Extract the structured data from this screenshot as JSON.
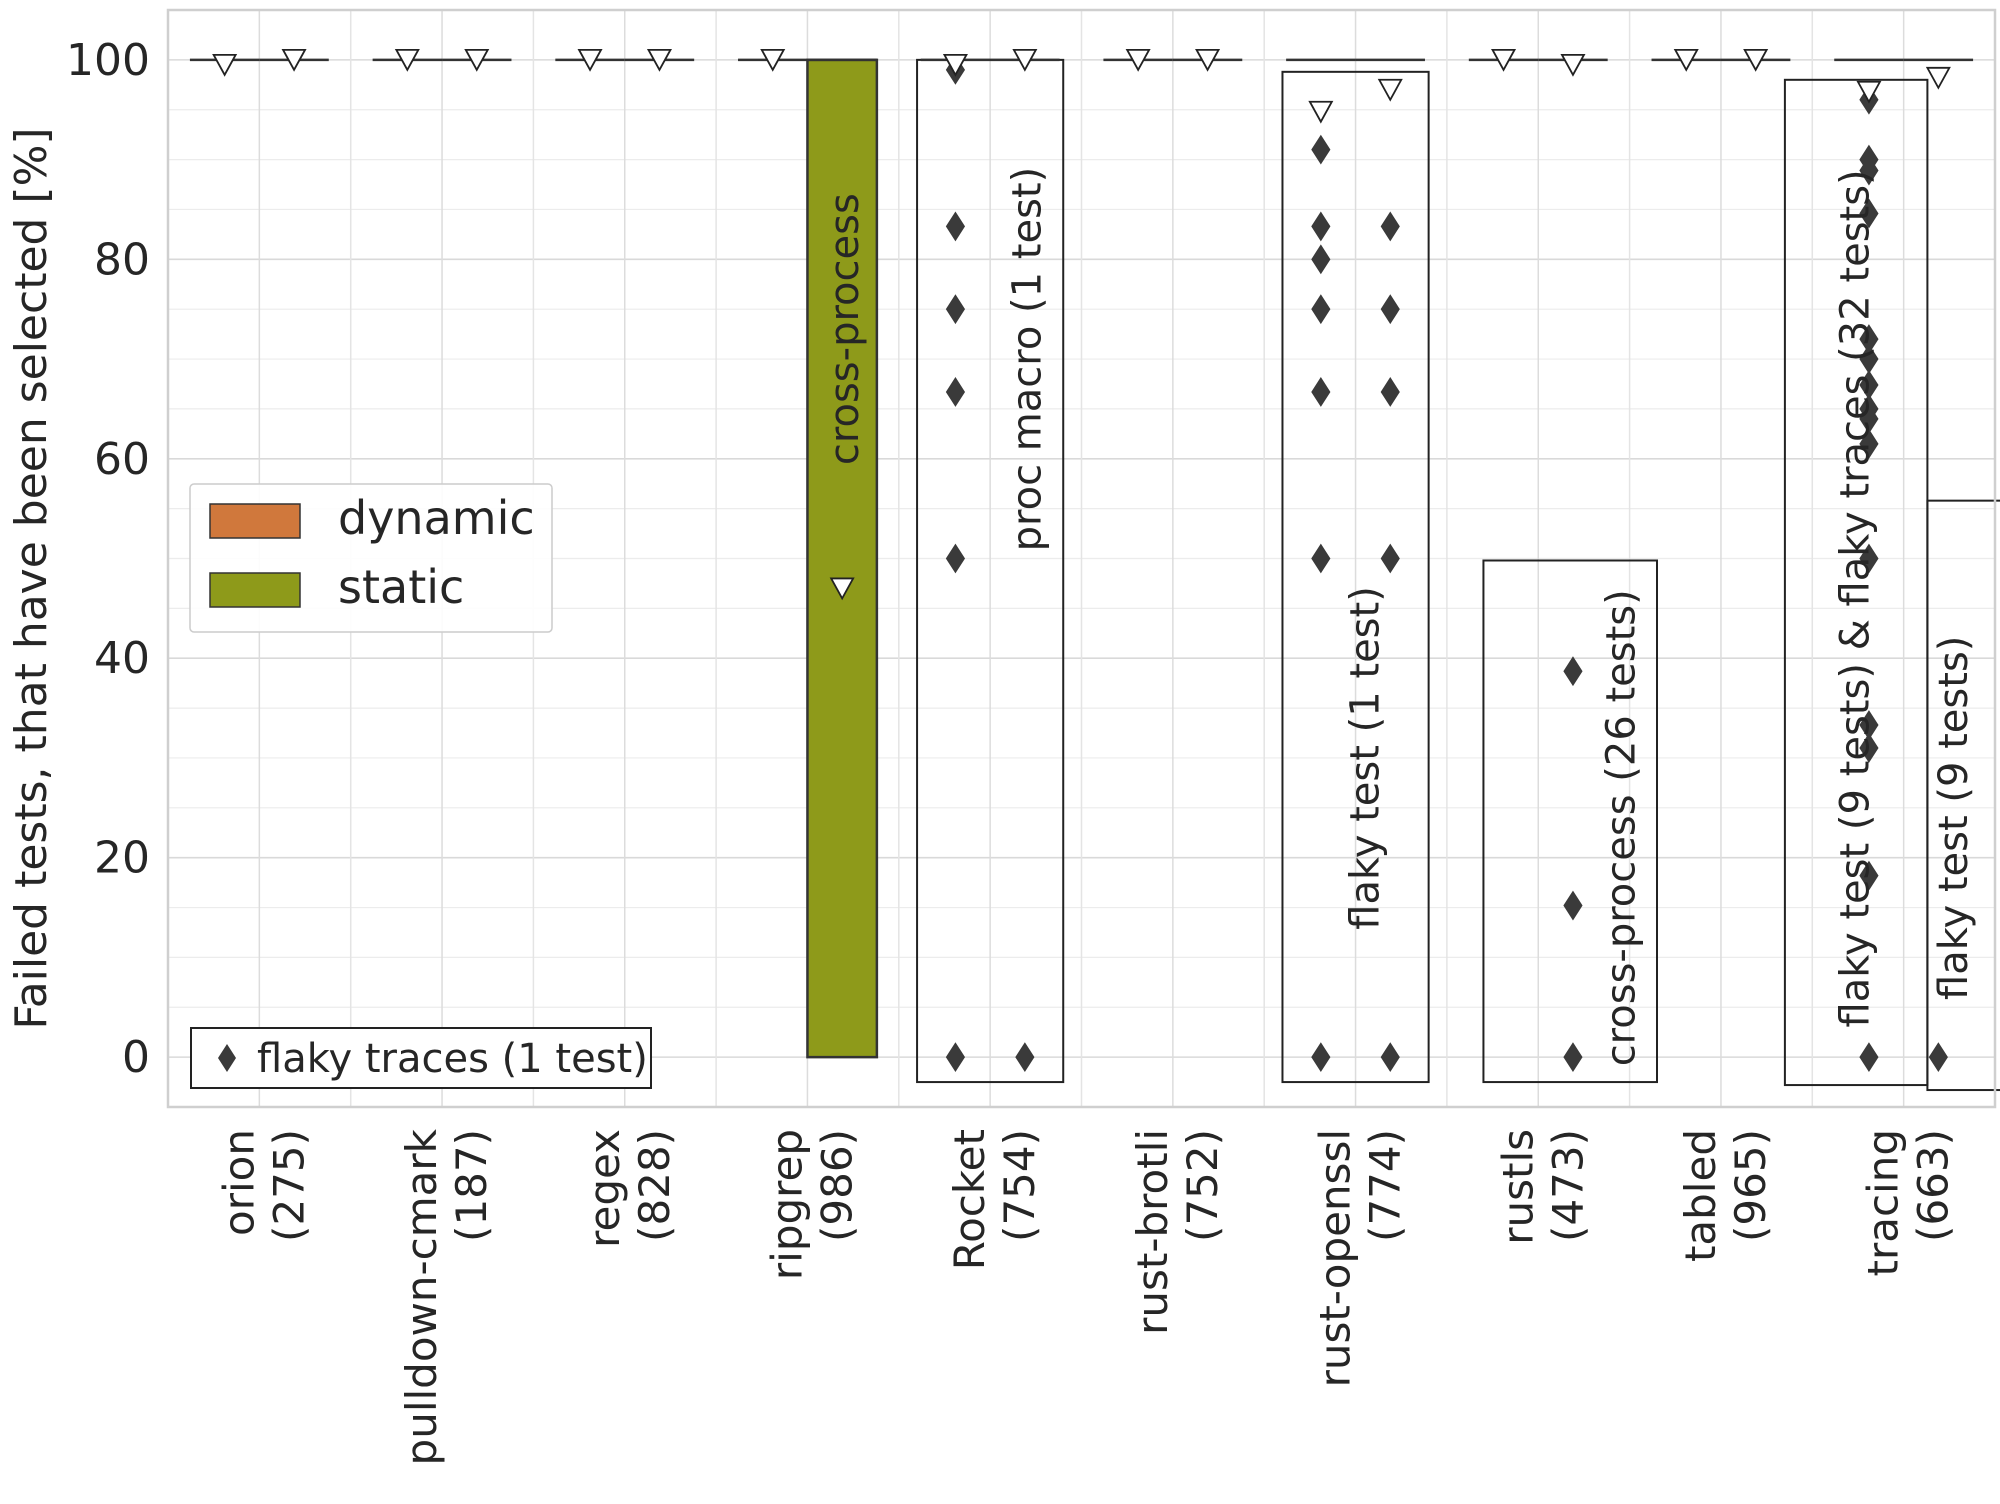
{
  "chart_data": {
    "type": "box",
    "ylabel": "Failed tests, that have been selected [%]",
    "ylim": [
      -5,
      105
    ],
    "yticks": [
      0,
      20,
      40,
      60,
      80,
      100
    ],
    "grid": true,
    "categories": [
      {
        "name": "orion",
        "count": "(275)"
      },
      {
        "name": "pulldown-cmark",
        "count": "(187)"
      },
      {
        "name": "regex",
        "count": "(828)"
      },
      {
        "name": "ripgrep",
        "count": "(986)"
      },
      {
        "name": "Rocket",
        "count": "(754)"
      },
      {
        "name": "rust-brotli",
        "count": "(752)"
      },
      {
        "name": "rust-openssl",
        "count": "(774)"
      },
      {
        "name": "rustls",
        "count": "(473)"
      },
      {
        "name": "tabled",
        "count": "(965)"
      },
      {
        "name": "tracing",
        "count": "(663)"
      }
    ],
    "series": [
      {
        "name": "dynamic",
        "color": "#d0783c",
        "boxes": [
          {
            "cat": 0,
            "median": 100,
            "mean": 99.5,
            "outliers": []
          },
          {
            "cat": 1,
            "median": 100,
            "mean": 100,
            "outliers": []
          },
          {
            "cat": 2,
            "median": 100,
            "mean": 100,
            "outliers": []
          },
          {
            "cat": 3,
            "median": 100,
            "mean": 100,
            "outliers": []
          },
          {
            "cat": 4,
            "median": 100,
            "mean": 99.5,
            "outliers": [
              99,
              83.3,
              75,
              66.7,
              50,
              0
            ]
          },
          {
            "cat": 5,
            "median": 100,
            "mean": 100,
            "outliers": []
          },
          {
            "cat": 6,
            "median": 100,
            "mean": 94.8,
            "outliers": [
              91,
              83.3,
              80,
              75,
              66.7,
              50,
              0
            ]
          },
          {
            "cat": 7,
            "median": 100,
            "mean": 100,
            "outliers": []
          },
          {
            "cat": 8,
            "median": 100,
            "mean": 100,
            "outliers": []
          },
          {
            "cat": 9,
            "median": 100,
            "mean": 96.8,
            "outliers": [
              96,
              90,
              88.9,
              84.6,
              72,
              70,
              67.4,
              65,
              64,
              61.5,
              50,
              33.3,
              31,
              18.2,
              0
            ]
          }
        ]
      },
      {
        "name": "static",
        "color": "#8e9a1a",
        "boxes": [
          {
            "cat": 0,
            "median": 100,
            "mean": 100,
            "outliers": []
          },
          {
            "cat": 1,
            "median": 100,
            "mean": 100,
            "outliers": []
          },
          {
            "cat": 2,
            "median": 100,
            "mean": 100,
            "outliers": []
          },
          {
            "cat": 3,
            "q1": 0,
            "q3": 100,
            "median": 100,
            "mean": 47,
            "outliers": []
          },
          {
            "cat": 4,
            "median": 100,
            "mean": 100,
            "outliers": [
              0
            ]
          },
          {
            "cat": 5,
            "median": 100,
            "mean": 100,
            "outliers": []
          },
          {
            "cat": 6,
            "median": 100,
            "mean": 97,
            "outliers": [
              83.3,
              75,
              66.7,
              50,
              0
            ]
          },
          {
            "cat": 7,
            "median": 100,
            "mean": 99.5,
            "outliers": [
              38.7,
              15.2,
              0
            ]
          },
          {
            "cat": 8,
            "median": 100,
            "mean": 100,
            "outliers": []
          },
          {
            "cat": 9,
            "median": 100,
            "mean": 98.2,
            "outliers": [
              0
            ]
          }
        ]
      }
    ],
    "legend": {
      "placement": "center-left",
      "entries": [
        {
          "label": "dynamic",
          "color": "#d0783c"
        },
        {
          "label": "static",
          "color": "#8e9a1a"
        }
      ]
    },
    "legend_marker": {
      "placement": "bottom-left",
      "label": "flaky traces (1 test)"
    },
    "annotations": [
      {
        "text": "cross-process",
        "cat": 3,
        "offset": 0.2,
        "y": 73
      },
      {
        "text": "proc macro (1 test)",
        "cat": 4,
        "offset": 0.2,
        "y": 70
      },
      {
        "text": "flaky test (1 test)",
        "cat": 6,
        "offset": 0.05,
        "y": 30
      },
      {
        "text": "cross-process (26 tests)",
        "cat": 7,
        "offset": 0.45,
        "y": 23
      },
      {
        "text": "flaky test (9 tests) & flaky traces (32 tests)",
        "cat": 9,
        "offset": -0.27,
        "y": 46
      },
      {
        "text": "flaky test (9 tests)",
        "cat": 9,
        "offset": 0.27,
        "y": 24
      }
    ],
    "annotation_boxes": [
      {
        "cat": 4,
        "from": -0.4,
        "to": 0.4,
        "ymin": -2.5,
        "ymax": 100
      },
      {
        "cat": 6,
        "from": -0.4,
        "to": 0.4,
        "ymin": -2.5,
        "ymax": 98.8
      },
      {
        "cat": 7,
        "from": -0.3,
        "to": 0.65,
        "ymin": -2.5,
        "ymax": 49.8
      },
      {
        "cat": 9,
        "from": -0.65,
        "to": 0.13,
        "ymin": -2.8,
        "ymax": 98
      },
      {
        "cat": 9,
        "from": 0.13,
        "to": 0.72,
        "ymin": -3.3,
        "ymax": 55.8
      }
    ]
  }
}
